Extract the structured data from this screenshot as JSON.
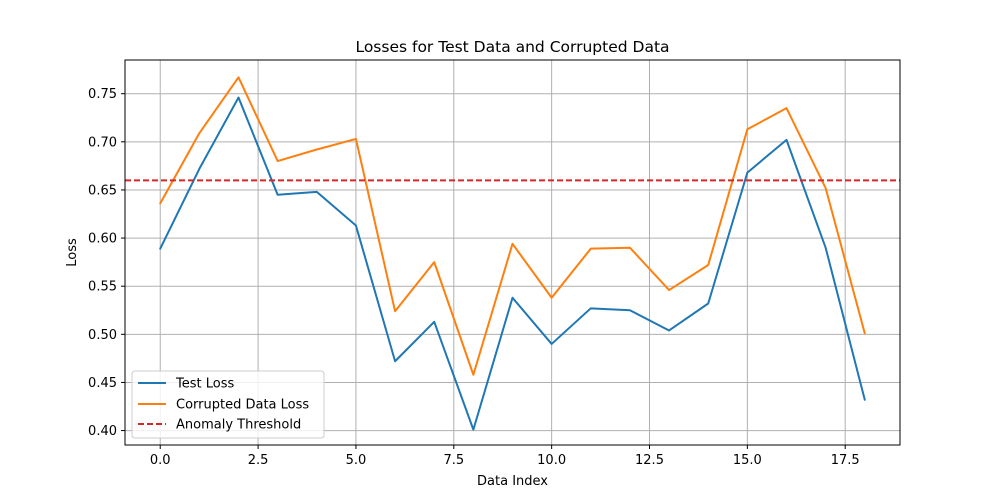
{
  "chart_data": {
    "type": "line",
    "title": "Losses for Test Data and Corrupted Data",
    "xlabel": "Data Index",
    "ylabel": "Loss",
    "xlim": [
      -0.9,
      18.9
    ],
    "ylim": [
      0.385,
      0.785
    ],
    "xticks": [
      0.0,
      2.5,
      5.0,
      7.5,
      10.0,
      12.5,
      15.0,
      17.5
    ],
    "xtick_labels": [
      "0.0",
      "2.5",
      "5.0",
      "7.5",
      "10.0",
      "12.5",
      "15.0",
      "17.5"
    ],
    "yticks": [
      0.4,
      0.45,
      0.5,
      0.55,
      0.6,
      0.65,
      0.7,
      0.75
    ],
    "ytick_labels": [
      "0.40",
      "0.45",
      "0.50",
      "0.55",
      "0.60",
      "0.65",
      "0.70",
      "0.75"
    ],
    "grid": true,
    "legend_position": "lower-left",
    "x": [
      0,
      1,
      2,
      3,
      4,
      5,
      6,
      7,
      8,
      9,
      10,
      11,
      12,
      13,
      14,
      15,
      16,
      17,
      18
    ],
    "series": [
      {
        "name": "Test Loss",
        "color": "#1f77b4",
        "values": [
          0.589,
          0.672,
          0.746,
          0.645,
          0.648,
          0.613,
          0.472,
          0.513,
          0.401,
          0.538,
          0.49,
          0.527,
          0.525,
          0.504,
          0.532,
          0.668,
          0.702,
          0.59,
          0.432
        ]
      },
      {
        "name": "Corrupted Data Loss",
        "color": "#ff7f0e",
        "values": [
          0.636,
          0.709,
          0.767,
          0.68,
          0.692,
          0.703,
          0.524,
          0.575,
          0.458,
          0.594,
          0.538,
          0.589,
          0.59,
          0.546,
          0.572,
          0.713,
          0.735,
          0.652,
          0.501
        ]
      }
    ],
    "threshold": {
      "name": "Anomaly Threshold",
      "value": 0.66,
      "color": "#d62728",
      "style": "dashed"
    }
  }
}
